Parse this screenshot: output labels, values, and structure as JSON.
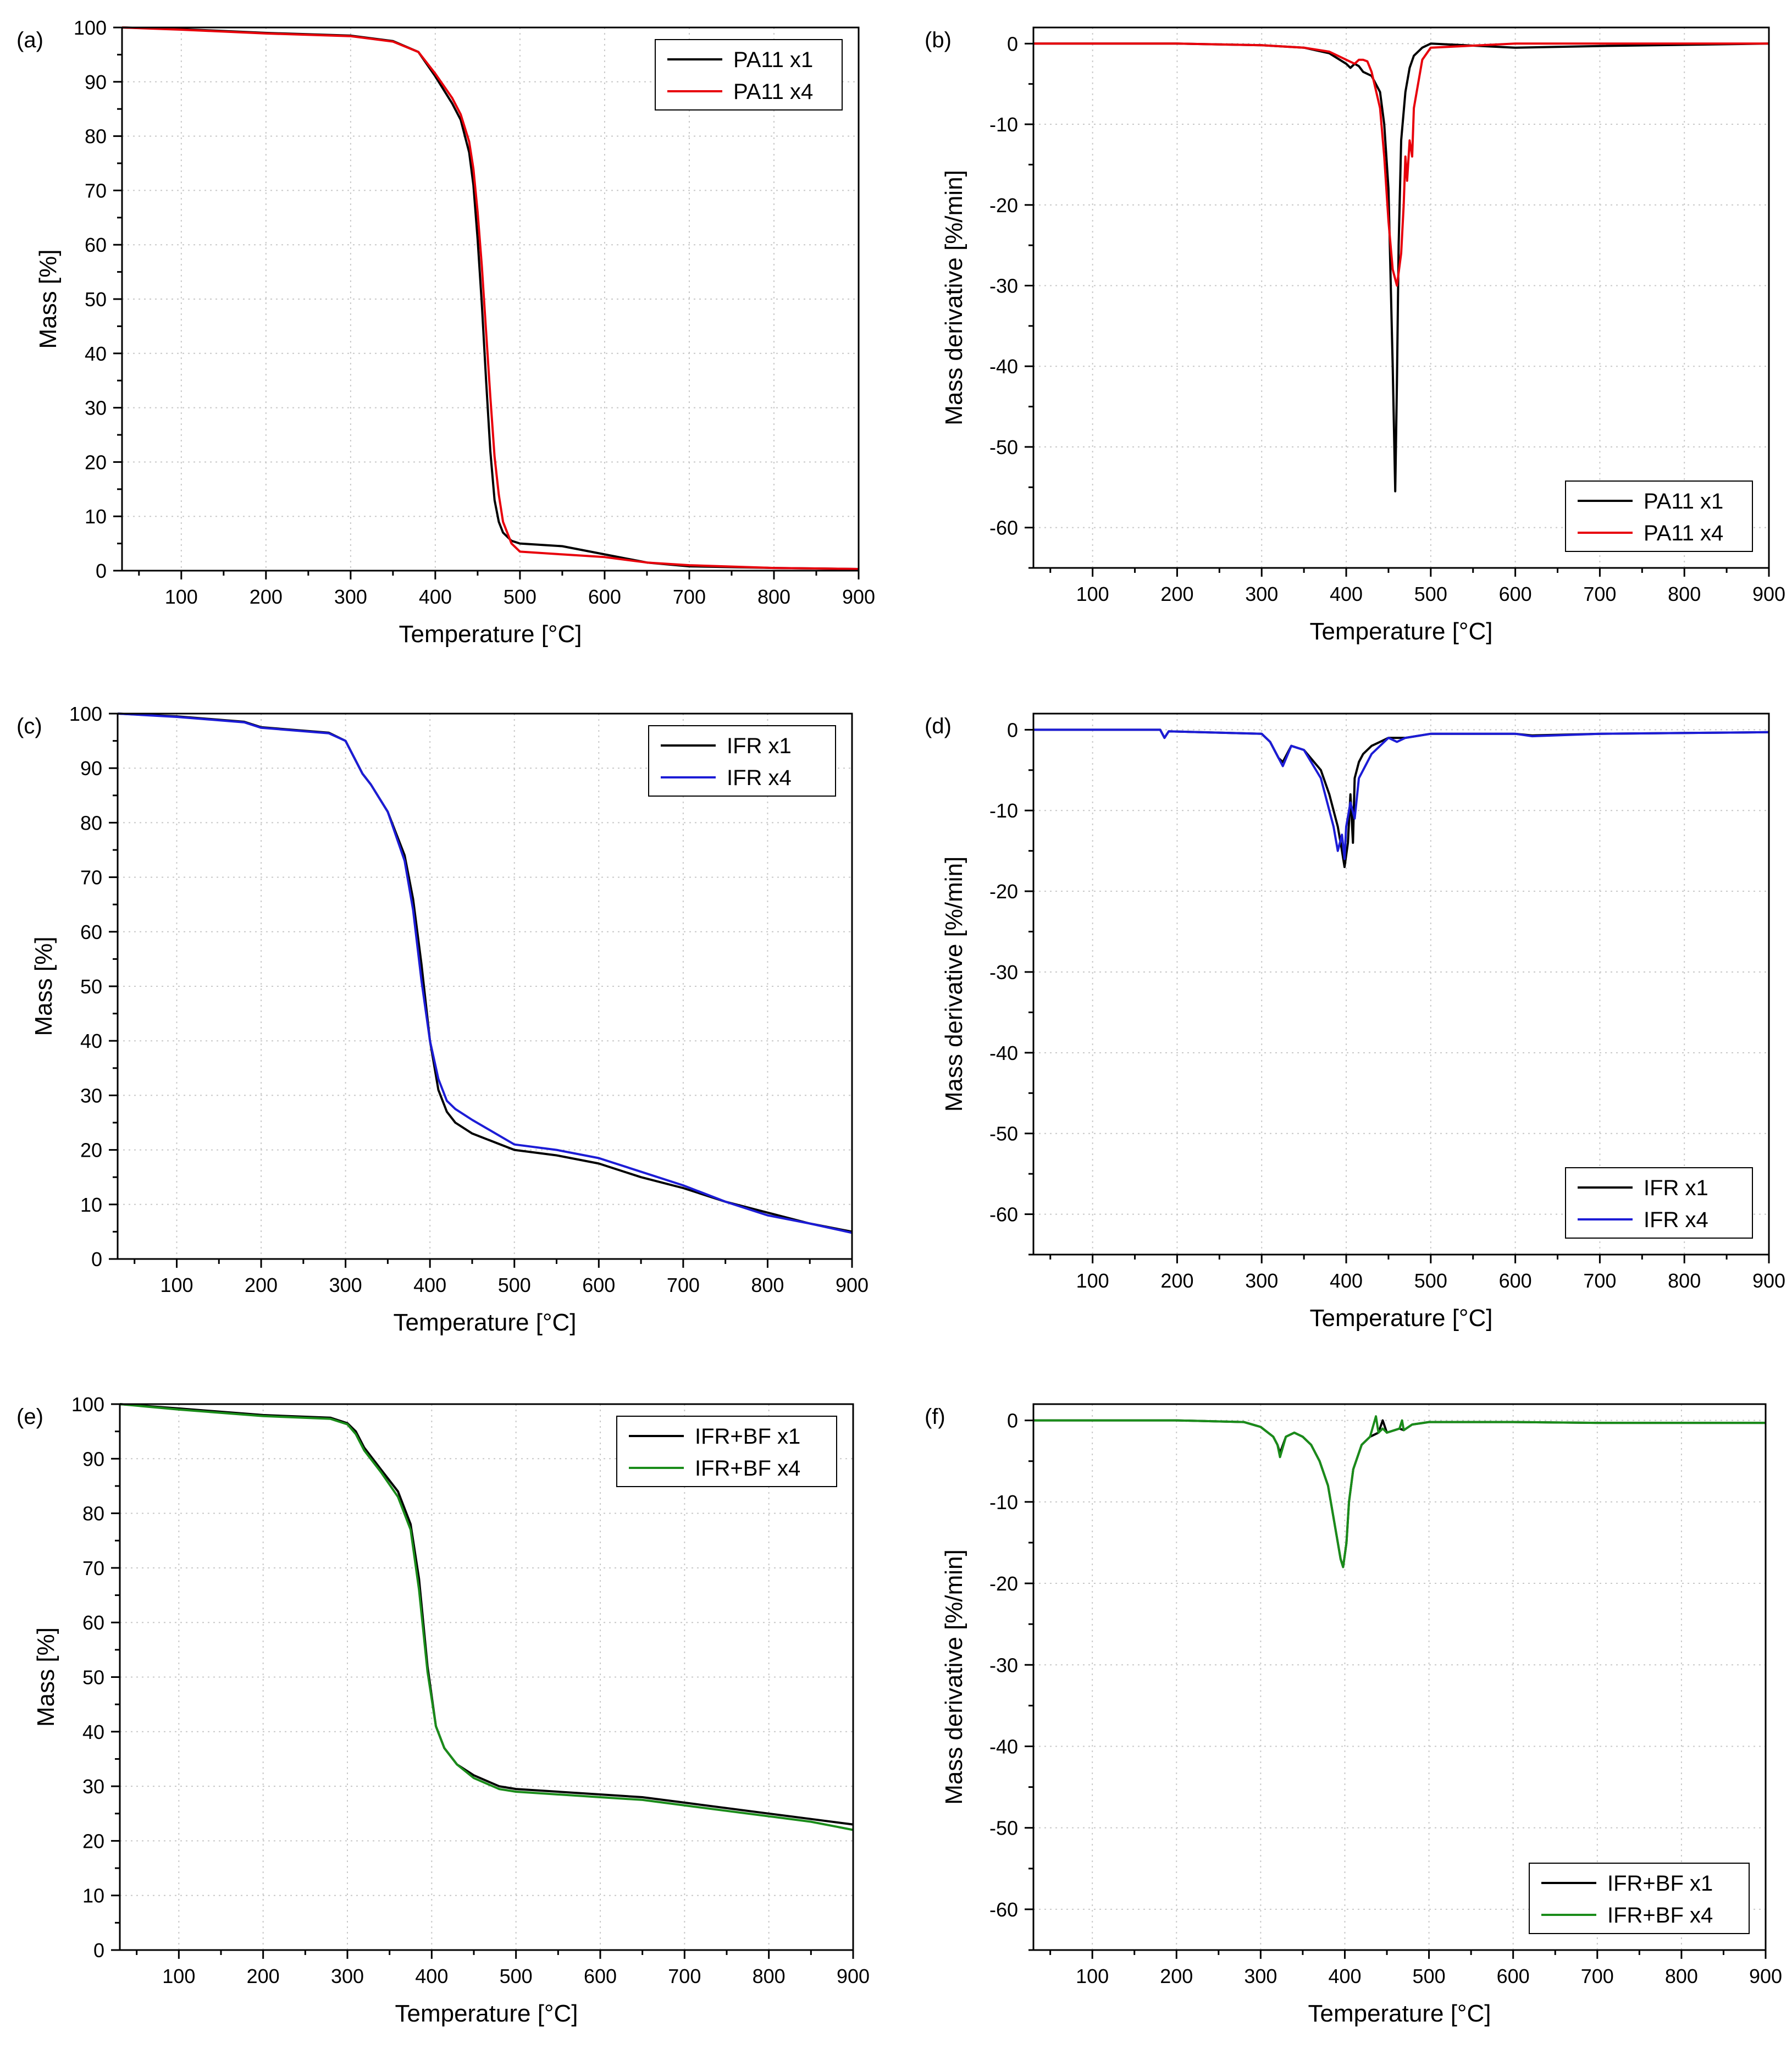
{
  "chart_data": [
    {
      "id": "a",
      "panel_label": "(a)",
      "type": "line",
      "xlabel": "Temperature [°C]",
      "ylabel": "Mass [%]",
      "xlim": [
        30,
        900
      ],
      "ylim": [
        0,
        100
      ],
      "xticks": [
        "100",
        "200",
        "300",
        "400",
        "500",
        "600",
        "700",
        "800",
        "900"
      ],
      "yticks": [
        "0",
        "10",
        "20",
        "30",
        "40",
        "50",
        "60",
        "70",
        "80",
        "90",
        "100"
      ],
      "legend_position": "top-right",
      "series": [
        {
          "name": "PA11 x1",
          "color": "#000000",
          "x": [
            30,
            100,
            200,
            300,
            350,
            380,
            400,
            420,
            430,
            440,
            445,
            450,
            455,
            460,
            465,
            470,
            475,
            480,
            490,
            500,
            550,
            600,
            650,
            700,
            800,
            900
          ],
          "y": [
            100,
            99.7,
            99,
            98.5,
            97.5,
            95.5,
            91,
            86,
            83,
            77,
            71,
            61,
            49,
            35,
            22,
            13,
            9,
            7,
            5.5,
            5,
            4.5,
            3,
            1.5,
            0.8,
            0.5,
            0.3
          ]
        },
        {
          "name": "PA11 x4",
          "color": "#e8000b",
          "x": [
            30,
            100,
            200,
            300,
            350,
            380,
            400,
            420,
            430,
            440,
            445,
            450,
            455,
            460,
            465,
            470,
            475,
            480,
            490,
            500,
            550,
            600,
            650,
            700,
            800,
            900
          ],
          "y": [
            100,
            99.6,
            98.9,
            98.4,
            97.4,
            95.5,
            91.5,
            87,
            84,
            79,
            74,
            66,
            56,
            44,
            32,
            21,
            14,
            9,
            5,
            3.5,
            3,
            2.5,
            1.5,
            1,
            0.5,
            0.3
          ]
        }
      ]
    },
    {
      "id": "b",
      "panel_label": "(b)",
      "type": "line",
      "xlabel": "Temperature [°C]",
      "ylabel": "Mass derivative [%/min]",
      "xlim": [
        30,
        900
      ],
      "ylim": [
        -65,
        2
      ],
      "xticks": [
        "100",
        "200",
        "300",
        "400",
        "500",
        "600",
        "700",
        "800",
        "900"
      ],
      "yticks": [
        "0",
        "-10",
        "-20",
        "-30",
        "-40",
        "-50",
        "-60"
      ],
      "legend_position": "bottom-right",
      "series": [
        {
          "name": "PA11 x1",
          "color": "#000000",
          "x": [
            30,
            200,
            300,
            350,
            380,
            400,
            405,
            410,
            415,
            420,
            430,
            440,
            445,
            450,
            455,
            458,
            460,
            462,
            465,
            470,
            475,
            480,
            490,
            500,
            600,
            700,
            900
          ],
          "y": [
            0,
            0,
            -0.2,
            -0.5,
            -1.2,
            -2.5,
            -3,
            -2.5,
            -2.8,
            -3.5,
            -4,
            -6,
            -10,
            -18,
            -40,
            -55.5,
            -42,
            -25,
            -12,
            -6,
            -3,
            -1.5,
            -0.5,
            0,
            -0.5,
            -0.3,
            0
          ]
        },
        {
          "name": "PA11 x4",
          "color": "#e8000b",
          "x": [
            30,
            200,
            300,
            350,
            380,
            400,
            410,
            415,
            420,
            425,
            430,
            440,
            445,
            450,
            455,
            460,
            465,
            468,
            470,
            472,
            475,
            478,
            480,
            490,
            500,
            600,
            700,
            900
          ],
          "y": [
            0,
            0,
            -0.2,
            -0.5,
            -1,
            -2,
            -2.5,
            -2,
            -2,
            -2.2,
            -3.5,
            -8,
            -14,
            -22,
            -28,
            -30,
            -26,
            -20,
            -14,
            -17,
            -12,
            -14,
            -8,
            -2,
            -0.5,
            0,
            0,
            0
          ]
        }
      ]
    },
    {
      "id": "c",
      "panel_label": "(c)",
      "type": "line",
      "xlabel": "Temperature [°C]",
      "ylabel": "Mass [%]",
      "xlim": [
        30,
        900
      ],
      "ylim": [
        0,
        100
      ],
      "xticks": [
        "100",
        "200",
        "300",
        "400",
        "500",
        "600",
        "700",
        "800",
        "900"
      ],
      "yticks": [
        "0",
        "10",
        "20",
        "30",
        "40",
        "50",
        "60",
        "70",
        "80",
        "90",
        "100"
      ],
      "legend_position": "top-right",
      "series": [
        {
          "name": "IFR x1",
          "color": "#000000",
          "x": [
            30,
            100,
            180,
            200,
            280,
            300,
            310,
            320,
            330,
            350,
            370,
            380,
            390,
            400,
            410,
            420,
            430,
            450,
            500,
            550,
            600,
            650,
            700,
            750,
            800,
            850,
            900
          ],
          "y": [
            100,
            99.5,
            98.5,
            97.5,
            96.5,
            95,
            92,
            89,
            87,
            82,
            74,
            66,
            54,
            40,
            31,
            27,
            25,
            23,
            20,
            19,
            17.5,
            15,
            13,
            10.5,
            8.5,
            6.5,
            5
          ]
        },
        {
          "name": "IFR x4",
          "color": "#1c1cd6",
          "x": [
            30,
            100,
            180,
            200,
            280,
            300,
            310,
            320,
            330,
            350,
            370,
            380,
            390,
            400,
            410,
            420,
            430,
            450,
            500,
            550,
            600,
            650,
            700,
            750,
            800,
            850,
            900
          ],
          "y": [
            100,
            99.4,
            98.4,
            97.4,
            96.4,
            95,
            92,
            89,
            87,
            82,
            73,
            64,
            51,
            40,
            33,
            29,
            27.5,
            25.5,
            21,
            20,
            18.5,
            16,
            13.5,
            10.5,
            8,
            6.5,
            4.8
          ]
        }
      ]
    },
    {
      "id": "d",
      "panel_label": "(d)",
      "type": "line",
      "xlabel": "Temperature [°C]",
      "ylabel": "Mass derivative [%/min]",
      "xlim": [
        30,
        900
      ],
      "ylim": [
        -65,
        2
      ],
      "xticks": [
        "100",
        "200",
        "300",
        "400",
        "500",
        "600",
        "700",
        "800",
        "900"
      ],
      "yticks": [
        "0",
        "-10",
        "-20",
        "-30",
        "-40",
        "-50",
        "-60"
      ],
      "legend_position": "bottom-right",
      "series": [
        {
          "name": "IFR x1",
          "color": "#000000",
          "x": [
            30,
            180,
            185,
            190,
            300,
            310,
            320,
            325,
            335,
            350,
            370,
            380,
            390,
            395,
            398,
            402,
            405,
            408,
            410,
            415,
            420,
            430,
            440,
            450,
            470,
            500,
            600,
            620,
            700,
            900
          ],
          "y": [
            0,
            0,
            -1,
            -0.2,
            -0.5,
            -1.5,
            -3.5,
            -4,
            -2,
            -2.5,
            -5,
            -8,
            -12,
            -15,
            -17,
            -14,
            -8,
            -14,
            -6,
            -4,
            -3,
            -2,
            -1.5,
            -1,
            -1,
            -0.5,
            -0.5,
            -0.7,
            -0.5,
            -0.3
          ]
        },
        {
          "name": "IFR x4",
          "color": "#1c1cd6",
          "x": [
            30,
            180,
            185,
            190,
            300,
            310,
            320,
            325,
            335,
            350,
            370,
            380,
            385,
            390,
            395,
            398,
            400,
            405,
            410,
            415,
            420,
            425,
            430,
            440,
            450,
            460,
            470,
            500,
            600,
            620,
            700,
            900
          ],
          "y": [
            0,
            0,
            -1,
            -0.2,
            -0.5,
            -1.5,
            -3.5,
            -4.5,
            -2,
            -2.5,
            -6,
            -10,
            -12,
            -15,
            -13,
            -16,
            -12,
            -9,
            -11,
            -6,
            -5,
            -4,
            -3,
            -2,
            -1,
            -1.5,
            -1,
            -0.5,
            -0.5,
            -0.8,
            -0.5,
            -0.3
          ]
        }
      ]
    },
    {
      "id": "e",
      "panel_label": "(e)",
      "type": "line",
      "xlabel": "Temperature [°C]",
      "ylabel": "Mass [%]",
      "xlim": [
        30,
        900
      ],
      "ylim": [
        0,
        100
      ],
      "xticks": [
        "100",
        "200",
        "300",
        "400",
        "500",
        "600",
        "700",
        "800",
        "900"
      ],
      "yticks": [
        "0",
        "10",
        "20",
        "30",
        "40",
        "50",
        "60",
        "70",
        "80",
        "90",
        "100"
      ],
      "legend_position": "top-right",
      "series": [
        {
          "name": "IFR+BF x1",
          "color": "#000000",
          "x": [
            30,
            100,
            200,
            280,
            300,
            310,
            320,
            340,
            360,
            375,
            385,
            395,
            405,
            415,
            430,
            450,
            480,
            500,
            600,
            650,
            700,
            800,
            850,
            900
          ],
          "y": [
            100,
            99.2,
            98,
            97.5,
            96.5,
            95,
            92,
            88,
            84,
            78,
            68,
            52,
            41,
            37,
            34,
            32,
            30,
            29.5,
            28.5,
            28,
            27,
            25,
            24,
            23
          ]
        },
        {
          "name": "IFR+BF x4",
          "color": "#1a8c1a",
          "x": [
            30,
            100,
            200,
            280,
            300,
            310,
            320,
            340,
            360,
            375,
            385,
            395,
            405,
            415,
            430,
            450,
            480,
            500,
            600,
            650,
            700,
            800,
            850,
            900
          ],
          "y": [
            100,
            99,
            97.8,
            97.3,
            96.3,
            94.5,
            91.5,
            87.5,
            83,
            77,
            66,
            51,
            41,
            37,
            34,
            31.5,
            29.5,
            29,
            28,
            27.5,
            26.5,
            24.5,
            23.5,
            22
          ]
        }
      ]
    },
    {
      "id": "f",
      "panel_label": "(f)",
      "type": "line",
      "xlabel": "Temperature [°C]",
      "ylabel": "Mass derivative [%/min]",
      "xlim": [
        30,
        900
      ],
      "ylim": [
        -65,
        2
      ],
      "xticks": [
        "100",
        "200",
        "300",
        "400",
        "500",
        "600",
        "700",
        "800",
        "900"
      ],
      "yticks": [
        "0",
        "-10",
        "-20",
        "-30",
        "-40",
        "-50",
        "-60"
      ],
      "legend_position": "bottom-right",
      "series": [
        {
          "name": "IFR+BF x1",
          "color": "#000000",
          "x": [
            30,
            200,
            280,
            300,
            315,
            320,
            323,
            330,
            340,
            350,
            360,
            370,
            380,
            390,
            395,
            398,
            402,
            405,
            410,
            420,
            430,
            440,
            445,
            450,
            465,
            470,
            480,
            500,
            600,
            700,
            900
          ],
          "y": [
            0,
            0,
            -0.2,
            -0.8,
            -2,
            -3,
            -4,
            -2,
            -1.5,
            -2,
            -3,
            -5,
            -8,
            -14,
            -17,
            -18,
            -15,
            -10,
            -6,
            -3,
            -2,
            -1.5,
            0,
            -1.5,
            -1,
            -1.2,
            -0.5,
            -0.2,
            -0.2,
            -0.3,
            -0.3
          ]
        },
        {
          "name": "IFR+BF x4",
          "color": "#1a8c1a",
          "x": [
            30,
            200,
            280,
            300,
            315,
            320,
            323,
            330,
            340,
            350,
            360,
            370,
            380,
            390,
            395,
            398,
            402,
            405,
            410,
            420,
            430,
            437,
            440,
            445,
            450,
            465,
            468,
            470,
            480,
            500,
            600,
            700,
            900
          ],
          "y": [
            0,
            0,
            -0.2,
            -0.8,
            -2,
            -3,
            -4.5,
            -2,
            -1.5,
            -2,
            -3,
            -5,
            -8,
            -14,
            -17,
            -18,
            -15,
            -10,
            -6,
            -3,
            -2,
            0.5,
            -1.5,
            -1,
            -1.5,
            -1,
            0,
            -1.2,
            -0.5,
            -0.2,
            -0.2,
            -0.3,
            -0.3
          ]
        }
      ]
    }
  ]
}
